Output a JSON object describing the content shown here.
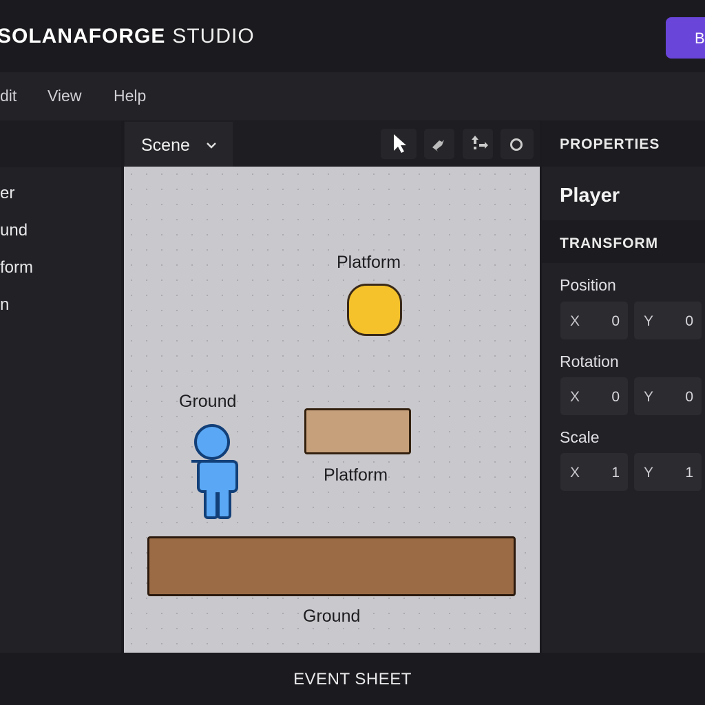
{
  "app": {
    "brand_bold": "SOLANAFORGE",
    "brand_light": "STUDIO",
    "top_button": "B"
  },
  "menu": [
    "dit",
    "View",
    "Help"
  ],
  "objects": [
    "er",
    "und",
    "form",
    "n"
  ],
  "scene": {
    "tab": "Scene",
    "tools": [
      "pointer-icon",
      "bone-icon",
      "move-icon",
      "circle-icon"
    ],
    "labels": {
      "coin": "Platform",
      "player": "Ground",
      "platform": "Platform",
      "ground": "Ground"
    },
    "colors": {
      "coin": "#f5c22b",
      "player": "#5aa8f5",
      "platform": "#c6a07a",
      "ground": "#9a6b45",
      "background": "#c9c8cc"
    }
  },
  "properties": {
    "header": "PROPERTIES",
    "object": "Player",
    "section": "TRANSFORM",
    "groups": [
      {
        "label": "Position",
        "x": "0",
        "y": "0"
      },
      {
        "label": "Rotation",
        "x": "0",
        "y": "0"
      },
      {
        "label": "Scale",
        "x": "1",
        "y": "1"
      }
    ],
    "x_key": "X",
    "y_key": "Y"
  },
  "footer": {
    "label": "EVENT SHEET"
  },
  "accent": "#6a45d9"
}
